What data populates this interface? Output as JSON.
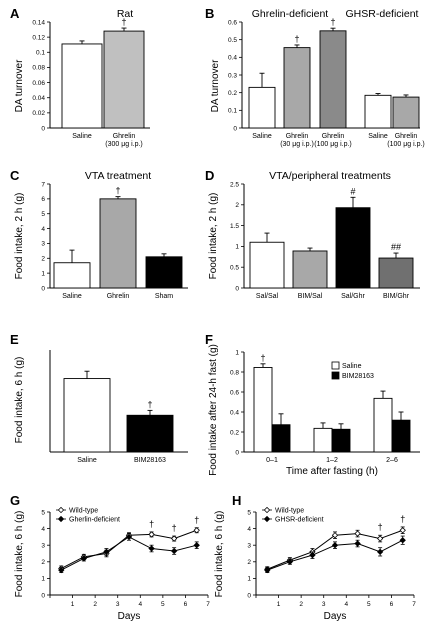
{
  "chart_data": [
    {
      "panel": "A",
      "type": "bar",
      "title": "Rat",
      "ylabel": "DA turnover",
      "ylim": [
        0,
        0.14
      ],
      "yticks": [
        "0",
        "0.02",
        "0.04",
        "0.06",
        "0.08",
        "0.1",
        "0.12",
        "0.14"
      ],
      "categories": [
        [
          "Saline"
        ],
        [
          "Ghrelin",
          "(300 μg i.p.)"
        ]
      ],
      "values": [
        0.111,
        0.128
      ],
      "errors": [
        0.004,
        0.004
      ],
      "colors": [
        "#ffffff",
        "#c0c0c0"
      ],
      "annotations": [
        "",
        "†"
      ]
    },
    {
      "panel": "B",
      "type": "bar",
      "group_labels": [
        "Ghrelin-deficient",
        "GHSR-deficient"
      ],
      "ylabel": "DA turnover",
      "ylim": [
        0,
        0.6
      ],
      "yticks": [
        "0",
        "0.1",
        "0.2",
        "0.3",
        "0.4",
        "0.5",
        "0.6"
      ],
      "categories": [
        [
          "Saline"
        ],
        [
          "Ghrelin",
          "(30 μg i.p.)"
        ],
        [
          "Ghrelin",
          "(100 μg i.p.)"
        ],
        [
          "Saline"
        ],
        [
          "Ghrelin",
          "(100 μg i.p.)"
        ]
      ],
      "values": [
        0.23,
        0.455,
        0.55,
        0.185,
        0.175
      ],
      "errors": [
        0.08,
        0.015,
        0.015,
        0.01,
        0.012
      ],
      "colors": [
        "#ffffff",
        "#a8a8a8",
        "#8a8a8a",
        "#ffffff",
        "#a8a8a8"
      ],
      "annotations": [
        "",
        "†",
        "†",
        "",
        ""
      ]
    },
    {
      "panel": "C",
      "type": "bar",
      "title": "VTA treatment",
      "ylabel": "Food intake, 2 h (g)",
      "ylim": [
        0,
        7
      ],
      "yticks": [
        "0",
        "1",
        "2",
        "3",
        "4",
        "5",
        "6",
        "7"
      ],
      "categories": [
        [
          "Saline"
        ],
        [
          "Ghrelin"
        ],
        [
          "Sham"
        ]
      ],
      "values": [
        1.7,
        6.0,
        2.1
      ],
      "errors": [
        0.85,
        0.15,
        0.2
      ],
      "colors": [
        "#ffffff",
        "#a8a8a8",
        "#000000"
      ],
      "annotations": [
        "",
        "†",
        ""
      ]
    },
    {
      "panel": "D",
      "type": "bar",
      "title": "VTA/peripheral treatments",
      "ylabel": "Food intake, 2 h (g)",
      "ylim": [
        0,
        2.5
      ],
      "yticks": [
        "0",
        "0.5",
        "1",
        "1.5",
        "2",
        "2.5"
      ],
      "categories": [
        [
          "Sal/Sal"
        ],
        [
          "BIM/Sal"
        ],
        [
          "Sal/Ghr"
        ],
        [
          "BIM/Ghr"
        ]
      ],
      "values": [
        1.1,
        0.89,
        1.93,
        0.72
      ],
      "errors": [
        0.22,
        0.07,
        0.25,
        0.12
      ],
      "colors": [
        "#ffffff",
        "#a8a8a8",
        "#000000",
        "#707070"
      ],
      "annotations": [
        "",
        "",
        "#",
        "##"
      ]
    },
    {
      "panel": "E",
      "type": "bar",
      "ylabel": "Food intake, 6 h (g)",
      "ylim": [
        0,
        2.5
      ],
      "yticks": [],
      "categories": [
        [
          "Saline"
        ],
        [
          "BIM28163"
        ]
      ],
      "values": [
        1.8,
        0.9
      ],
      "errors": [
        0.18,
        0.12
      ],
      "colors": [
        "#ffffff",
        "#000000"
      ],
      "annotations": [
        "",
        "†"
      ]
    },
    {
      "panel": "F",
      "type": "bar",
      "ylabel": "Food intake after 24-h fast (g)",
      "xlabel": "Time after fasting (h)",
      "ylim": [
        0,
        1.1
      ],
      "yticks": [
        "0",
        "0.2",
        "0.4",
        "0.6",
        "0.8",
        "1"
      ],
      "categories": [
        "0–1",
        "1–2",
        "2–6"
      ],
      "series": [
        {
          "name": "Saline",
          "values": [
            0.93,
            0.26,
            0.59
          ],
          "errors": [
            0.04,
            0.06,
            0.08
          ],
          "color": "#ffffff"
        },
        {
          "name": "BIM28163",
          "values": [
            0.3,
            0.25,
            0.35
          ],
          "errors": [
            0.12,
            0.06,
            0.09
          ],
          "color": "#000000"
        }
      ],
      "annotations": [
        "†",
        "",
        ""
      ],
      "legend": "top-right"
    },
    {
      "panel": "G",
      "type": "line",
      "ylabel": "Food intake, 6 h (g)",
      "xlabel": "Days",
      "xlim": [
        0,
        7
      ],
      "ylim": [
        0,
        5
      ],
      "xticks": [
        "0",
        "1",
        "2",
        "3",
        "4",
        "5",
        "6",
        "7"
      ],
      "yticks": [
        "0",
        "1",
        "2",
        "3",
        "4",
        "5"
      ],
      "x": [
        0.5,
        1.5,
        2.5,
        3.5,
        4.5,
        5.5,
        6.5
      ],
      "series": [
        {
          "name": "Wild-type",
          "values": [
            1.6,
            2.3,
            2.5,
            3.6,
            3.65,
            3.4,
            3.9
          ],
          "errors": [
            0.15,
            0.15,
            0.2,
            0.15,
            0.15,
            0.15,
            0.15
          ],
          "marker": "open-diamond"
        },
        {
          "name": "Gherlin-deficient",
          "values": [
            1.5,
            2.2,
            2.6,
            3.5,
            2.8,
            2.65,
            3.0
          ],
          "errors": [
            0.15,
            0.15,
            0.2,
            0.2,
            0.2,
            0.2,
            0.2
          ],
          "marker": "filled-diamond"
        }
      ],
      "annotations": [
        {
          "x": 4.5,
          "text": "†"
        },
        {
          "x": 5.5,
          "text": "†"
        },
        {
          "x": 6.5,
          "text": "†"
        }
      ],
      "legend": "top-left"
    },
    {
      "panel": "H",
      "type": "line",
      "ylabel": "Food intake, 6 h (g)",
      "xlabel": "Days",
      "xlim": [
        0,
        7
      ],
      "ylim": [
        0,
        5
      ],
      "xticks": [
        "0",
        "1",
        "2",
        "3",
        "4",
        "5",
        "6",
        "7"
      ],
      "yticks": [
        "0",
        "1",
        "2",
        "3",
        "4",
        "5"
      ],
      "x": [
        0.5,
        1.5,
        2.5,
        3.5,
        4.5,
        5.5,
        6.5
      ],
      "series": [
        {
          "name": "Wild-type",
          "values": [
            1.55,
            2.1,
            2.6,
            3.6,
            3.7,
            3.4,
            3.9
          ],
          "errors": [
            0.15,
            0.15,
            0.2,
            0.2,
            0.2,
            0.2,
            0.2
          ],
          "marker": "open-diamond"
        },
        {
          "name": "GHSR-deficient",
          "values": [
            1.5,
            2.0,
            2.4,
            3.0,
            3.1,
            2.6,
            3.3
          ],
          "errors": [
            0.15,
            0.15,
            0.2,
            0.2,
            0.2,
            0.25,
            0.25
          ],
          "marker": "filled-diamond"
        }
      ],
      "annotations": [
        {
          "x": 5.5,
          "text": "†"
        },
        {
          "x": 6.5,
          "text": "†"
        }
      ],
      "legend": "top-left"
    }
  ]
}
